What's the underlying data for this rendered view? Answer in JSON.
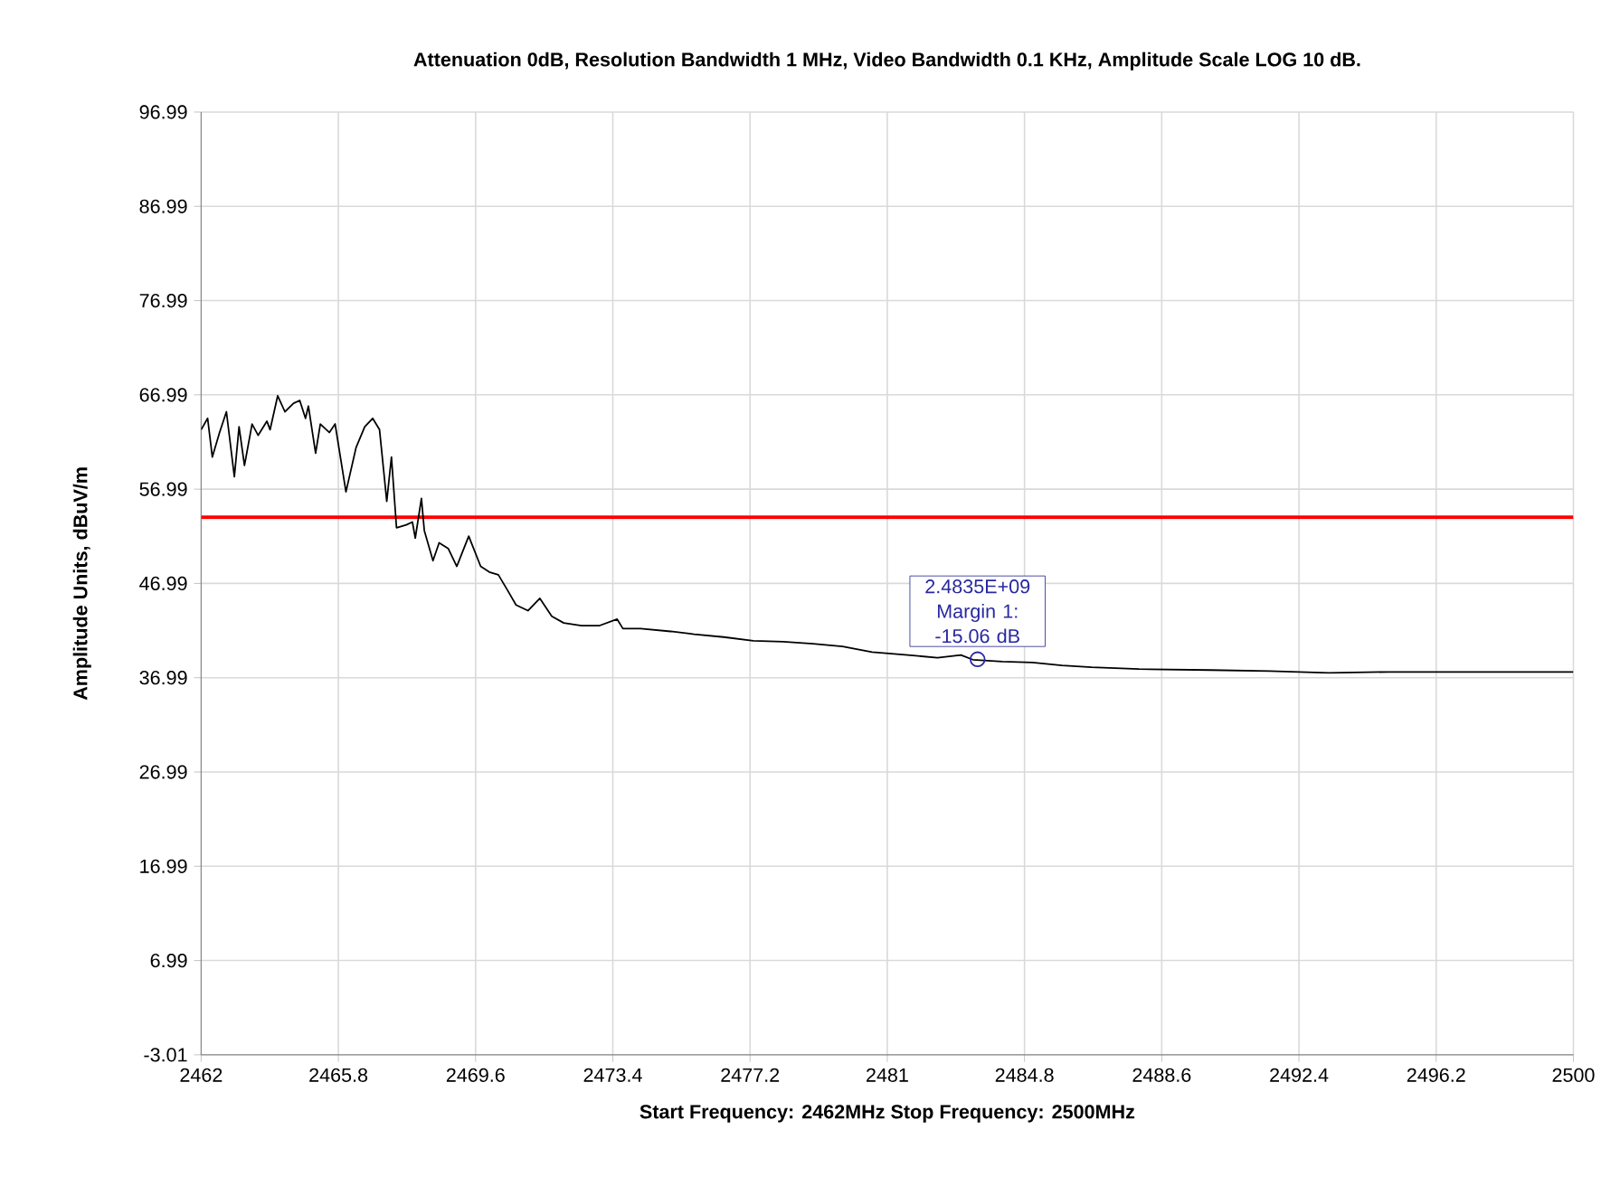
{
  "chart_data": {
    "type": "line",
    "title": "Attenuation 0dB, Resolution Bandwidth 1 MHz, Video Bandwidth 0.1 KHz, Amplitude Scale LOG 10 dB.",
    "xlabel": "Start Frequency: 2462MHz     Stop Frequency: 2500MHz",
    "ylabel": "Amplitude Units, dBuV/m",
    "x": [
      2462.0,
      2462.18,
      2462.31,
      2462.51,
      2462.7,
      2462.92,
      2463.05,
      2463.2,
      2463.41,
      2463.58,
      2463.82,
      2463.91,
      2464.12,
      2464.32,
      2464.56,
      2464.73,
      2464.89,
      2464.97,
      2465.17,
      2465.3,
      2465.55,
      2465.71,
      2466.01,
      2466.29,
      2466.53,
      2466.75,
      2466.94,
      2467.14,
      2467.27,
      2467.41,
      2467.68,
      2467.85,
      2467.93,
      2468.1,
      2468.18,
      2468.42,
      2468.59,
      2468.84,
      2469.08,
      2469.41,
      2469.74,
      2469.98,
      2470.23,
      2470.48,
      2470.72,
      2471.05,
      2471.38,
      2471.71,
      2472.04,
      2472.53,
      2473.02,
      2473.52,
      2473.68,
      2474.17,
      2475.0,
      2475.65,
      2476.47,
      2477.29,
      2478.12,
      2478.94,
      2479.76,
      2480.58,
      2481.57,
      2482.39,
      2483.04,
      2483.37,
      2484.19,
      2485.02,
      2485.84,
      2486.66,
      2487.97,
      2489.94,
      2491.59,
      2493.23,
      2494.87,
      2496.51,
      2498.16,
      2500.0
    ],
    "series": [
      {
        "color": "#000000",
        "values": [
          63.3,
          64.5,
          60.4,
          63.0,
          65.2,
          58.3,
          63.6,
          59.5,
          63.9,
          62.7,
          64.2,
          63.3,
          66.9,
          65.2,
          66.1,
          66.4,
          64.5,
          65.8,
          60.8,
          63.9,
          63.0,
          63.9,
          56.7,
          61.4,
          63.6,
          64.5,
          63.3,
          55.7,
          60.4,
          52.9,
          53.2,
          53.5,
          51.8,
          56.0,
          52.6,
          49.4,
          51.3,
          50.7,
          48.8,
          52.0,
          48.8,
          48.2,
          47.9,
          46.3,
          44.7,
          44.1,
          45.4,
          43.5,
          42.8,
          42.5,
          42.5,
          43.2,
          42.2,
          42.2,
          41.9,
          41.6,
          41.3,
          40.9,
          40.8,
          40.6,
          40.3,
          39.7,
          39.4,
          39.1,
          39.4,
          38.9,
          38.7,
          38.6,
          38.3,
          38.1,
          37.9,
          37.8,
          37.7,
          37.5,
          37.6,
          37.6,
          37.6,
          37.6
        ]
      }
    ],
    "xlim": [
      2462,
      2500
    ],
    "xticks": [
      2462,
      2465.8,
      2469.6,
      2473.4,
      2477.2,
      2481,
      2484.8,
      2488.6,
      2492.4,
      2496.2,
      2500
    ],
    "ylim": [
      -3.01,
      96.99
    ],
    "yticks": [
      -3.01,
      6.99,
      16.99,
      26.99,
      36.99,
      46.99,
      56.99,
      66.99,
      76.99,
      86.99,
      96.99
    ],
    "grid": true,
    "ref_lines": [
      {
        "axis": "y",
        "value": 54,
        "color": "#ff0000"
      }
    ],
    "annotations": [
      {
        "text": "2.4835E+09 Margin 1: -15.06 dB",
        "x": 2483.5,
        "y": 38.94
      }
    ]
  }
}
